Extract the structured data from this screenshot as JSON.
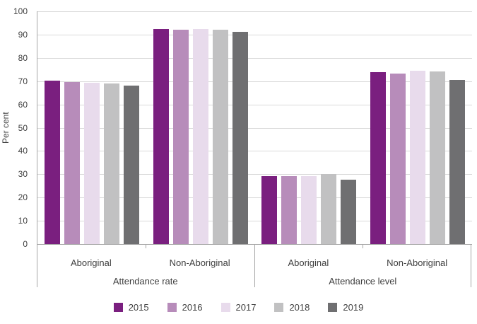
{
  "chart_data": {
    "type": "bar",
    "title": "",
    "ylabel": "Per cent",
    "ylim": [
      0,
      100
    ],
    "ytick_step": 10,
    "yticks": [
      0,
      10,
      20,
      30,
      40,
      50,
      60,
      70,
      80,
      90,
      100
    ],
    "grid": true,
    "legend_position": "bottom",
    "categories": [
      "Aboriginal",
      "Non-Aboriginal",
      "Aboriginal",
      "Non-Aboriginal"
    ],
    "sections": [
      {
        "label": "Attendance rate",
        "span": [
          0,
          1
        ]
      },
      {
        "label": "Attendance level",
        "span": [
          2,
          3
        ]
      }
    ],
    "series": [
      {
        "name": "2015",
        "color": "#7a1f7f",
        "values": [
          70.1,
          92.3,
          29.3,
          73.8
        ]
      },
      {
        "name": "2016",
        "color": "#b78cba",
        "values": [
          69.5,
          92.2,
          29.2,
          73.4
        ]
      },
      {
        "name": "2017",
        "color": "#e8dbec",
        "values": [
          69.4,
          92.3,
          29.3,
          74.5
        ]
      },
      {
        "name": "2018",
        "color": "#c1c1c2",
        "values": [
          68.9,
          92.0,
          30.2,
          74.1
        ]
      },
      {
        "name": "2019",
        "color": "#6f6f71",
        "values": [
          68.2,
          91.3,
          27.6,
          70.4
        ]
      }
    ]
  },
  "colors": {
    "background": "#ffffff",
    "gridline": "#d9d9d9",
    "axis_line": "#a6a6a6",
    "text": "#3f3f3f"
  }
}
